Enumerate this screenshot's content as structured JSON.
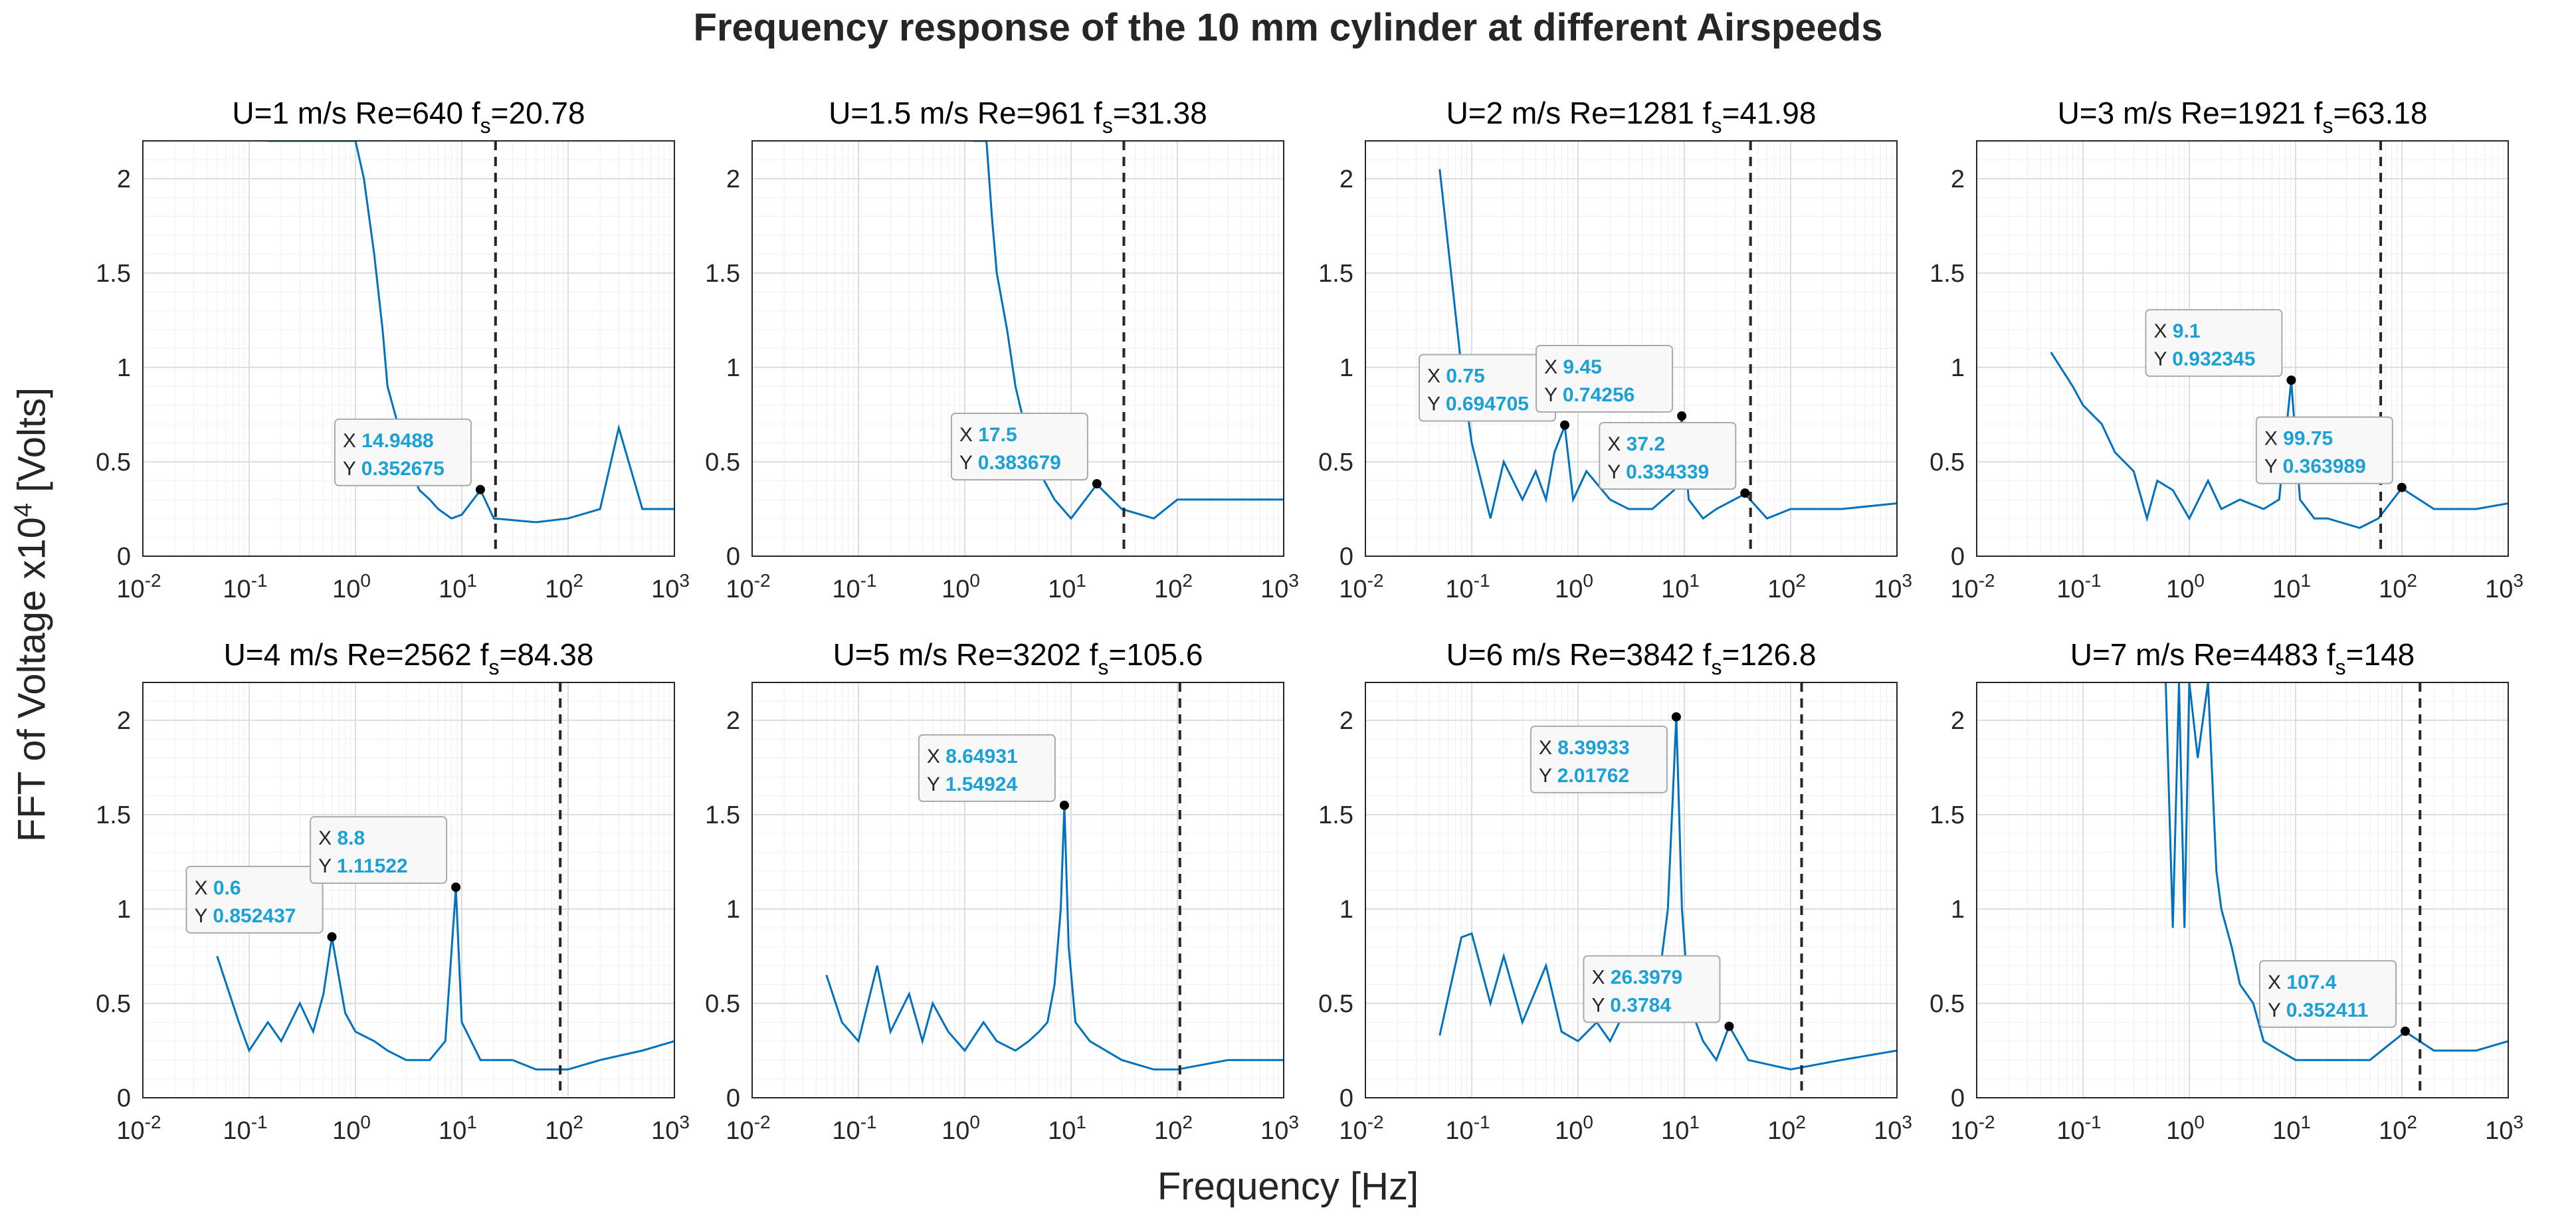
{
  "figure": {
    "title": "Frequency response of the 10 mm cylinder at different Airspeeds",
    "xlabel": "Frequency [Hz]",
    "ylabel": "FFT of Voltage x10",
    "ylabel_exponent": "4",
    "ylabel_units": "[Volts]"
  },
  "colors": {
    "series": "#0072BD",
    "datatip_text": "#1ba1d6",
    "fs_line": "#262626",
    "grid": "#dddddd"
  },
  "chart_data": [
    {
      "type": "line",
      "subtitle": {
        "u": "U=1 m/s",
        "re": "Re=640",
        "fs_label": "f",
        "fs_sub": "s",
        "fs_value": "=20.78"
      },
      "xscale": "log",
      "xlim": [
        0.01,
        1000
      ],
      "ylim": [
        0,
        2.2
      ],
      "xticks": [
        {
          "base": "10",
          "exp": "-2"
        },
        {
          "base": "10",
          "exp": "-1"
        },
        {
          "base": "10",
          "exp": "0"
        },
        {
          "base": "10",
          "exp": "1"
        },
        {
          "base": "10",
          "exp": "2"
        },
        {
          "base": "10",
          "exp": "3"
        }
      ],
      "yticks": [
        "0",
        "0.5",
        "1",
        "1.5",
        "2"
      ],
      "fs_line_x": 20.78,
      "series": {
        "name": "FFT",
        "x": [
          0.15,
          0.2,
          0.4,
          0.6,
          0.8,
          1.0,
          1.2,
          1.5,
          1.8,
          2.0,
          2.5,
          3.0,
          4.0,
          5.0,
          6.0,
          8.0,
          10,
          15,
          20,
          50,
          100,
          200,
          300,
          500,
          1000
        ],
        "y": [
          2.2,
          2.2,
          2.2,
          2.2,
          2.2,
          2.2,
          2.0,
          1.6,
          1.2,
          0.9,
          0.7,
          0.5,
          0.35,
          0.3,
          0.25,
          0.2,
          0.22,
          0.35,
          0.2,
          0.18,
          0.2,
          0.25,
          0.68,
          0.25,
          0.25
        ]
      },
      "annotations": [
        {
          "x_label": "X",
          "x_value": "14.9488",
          "y_label": "Y",
          "y_value": "0.352675",
          "x": 14.9488,
          "y": 0.352675
        }
      ]
    },
    {
      "type": "line",
      "subtitle": {
        "u": "U=1.5 m/s",
        "re": "Re=961",
        "fs_label": "f",
        "fs_sub": "s",
        "fs_value": "=31.38"
      },
      "xscale": "log",
      "xlim": [
        0.01,
        1000
      ],
      "ylim": [
        0,
        2.2
      ],
      "xticks": [
        {
          "base": "10",
          "exp": "-2"
        },
        {
          "base": "10",
          "exp": "-1"
        },
        {
          "base": "10",
          "exp": "0"
        },
        {
          "base": "10",
          "exp": "1"
        },
        {
          "base": "10",
          "exp": "2"
        },
        {
          "base": "10",
          "exp": "3"
        }
      ],
      "yticks": [
        "0",
        "0.5",
        "1",
        "1.5",
        "2"
      ],
      "fs_line_x": 31.38,
      "series": {
        "name": "FFT",
        "x": [
          1.2,
          1.4,
          1.6,
          1.8,
          2.0,
          2.5,
          3.0,
          4.0,
          5.0,
          7.0,
          10,
          17.5,
          30,
          60,
          100,
          300,
          1000
        ],
        "y": [
          2.2,
          2.2,
          2.2,
          1.8,
          1.5,
          1.2,
          0.9,
          0.6,
          0.45,
          0.3,
          0.2,
          0.38,
          0.25,
          0.2,
          0.3,
          0.3,
          0.3
        ]
      },
      "annotations": [
        {
          "x_label": "X",
          "x_value": "17.5",
          "y_label": "Y",
          "y_value": "0.383679",
          "x": 17.5,
          "y": 0.383679
        }
      ]
    },
    {
      "type": "line",
      "subtitle": {
        "u": "U=2 m/s",
        "re": "Re=1281",
        "fs_label": "f",
        "fs_sub": "s",
        "fs_value": "=41.98"
      },
      "xscale": "log",
      "xlim": [
        0.01,
        1000
      ],
      "ylim": [
        0,
        2.2
      ],
      "xticks": [
        {
          "base": "10",
          "exp": "-2"
        },
        {
          "base": "10",
          "exp": "-1"
        },
        {
          "base": "10",
          "exp": "0"
        },
        {
          "base": "10",
          "exp": "1"
        },
        {
          "base": "10",
          "exp": "2"
        },
        {
          "base": "10",
          "exp": "3"
        }
      ],
      "yticks": [
        "0",
        "0.5",
        "1",
        "1.5",
        "2"
      ],
      "fs_line_x": 41.98,
      "series": {
        "name": "FFT",
        "x": [
          0.05,
          0.08,
          0.1,
          0.15,
          0.2,
          0.3,
          0.4,
          0.5,
          0.6,
          0.75,
          0.9,
          1.2,
          2,
          3,
          5,
          8,
          9.45,
          11,
          15,
          20,
          37.2,
          60,
          100,
          300,
          1000
        ],
        "y": [
          2.05,
          1.0,
          0.6,
          0.2,
          0.5,
          0.3,
          0.45,
          0.3,
          0.55,
          0.69,
          0.3,
          0.45,
          0.3,
          0.25,
          0.25,
          0.35,
          0.74,
          0.3,
          0.2,
          0.25,
          0.33,
          0.2,
          0.25,
          0.25,
          0.28
        ]
      },
      "annotations": [
        {
          "x_label": "X",
          "x_value": "0.75",
          "y_label": "Y",
          "y_value": "0.694705",
          "x": 0.75,
          "y": 0.694705
        },
        {
          "x_label": "X",
          "x_value": "9.45",
          "y_label": "Y",
          "y_value": "0.74256",
          "x": 9.45,
          "y": 0.74256
        },
        {
          "x_label": "X",
          "x_value": "37.2",
          "y_label": "Y",
          "y_value": "0.334339",
          "x": 37.2,
          "y": 0.334339
        }
      ]
    },
    {
      "type": "line",
      "subtitle": {
        "u": "U=3 m/s",
        "re": "Re=1921",
        "fs_label": "f",
        "fs_sub": "s",
        "fs_value": "=63.18"
      },
      "xscale": "log",
      "xlim": [
        0.01,
        1000
      ],
      "ylim": [
        0,
        2.2
      ],
      "xticks": [
        {
          "base": "10",
          "exp": "-2"
        },
        {
          "base": "10",
          "exp": "-1"
        },
        {
          "base": "10",
          "exp": "0"
        },
        {
          "base": "10",
          "exp": "1"
        },
        {
          "base": "10",
          "exp": "2"
        },
        {
          "base": "10",
          "exp": "3"
        }
      ],
      "yticks": [
        "0",
        "0.5",
        "1",
        "1.5",
        "2"
      ],
      "fs_line_x": 63.18,
      "series": {
        "name": "FFT",
        "x": [
          0.05,
          0.08,
          0.1,
          0.15,
          0.2,
          0.3,
          0.4,
          0.5,
          0.7,
          1,
          1.5,
          2,
          3,
          5,
          7,
          9.1,
          11,
          15,
          20,
          40,
          60,
          99.75,
          200,
          500,
          1000
        ],
        "y": [
          1.08,
          0.9,
          0.8,
          0.7,
          0.55,
          0.45,
          0.2,
          0.4,
          0.35,
          0.2,
          0.4,
          0.25,
          0.3,
          0.25,
          0.3,
          0.93,
          0.3,
          0.2,
          0.2,
          0.15,
          0.2,
          0.36,
          0.25,
          0.25,
          0.28
        ]
      },
      "annotations": [
        {
          "x_label": "X",
          "x_value": "9.1",
          "y_label": "Y",
          "y_value": "0.932345",
          "x": 9.1,
          "y": 0.932345
        },
        {
          "x_label": "X",
          "x_value": "99.75",
          "y_label": "Y",
          "y_value": "0.363989",
          "x": 99.75,
          "y": 0.363989
        }
      ]
    },
    {
      "type": "line",
      "subtitle": {
        "u": "U=4 m/s",
        "re": "Re=2562",
        "fs_label": "f",
        "fs_sub": "s",
        "fs_value": "=84.38"
      },
      "xscale": "log",
      "xlim": [
        0.01,
        1000
      ],
      "ylim": [
        0,
        2.2
      ],
      "xticks": [
        {
          "base": "10",
          "exp": "-2"
        },
        {
          "base": "10",
          "exp": "-1"
        },
        {
          "base": "10",
          "exp": "0"
        },
        {
          "base": "10",
          "exp": "1"
        },
        {
          "base": "10",
          "exp": "2"
        },
        {
          "base": "10",
          "exp": "3"
        }
      ],
      "yticks": [
        "0",
        "0.5",
        "1",
        "1.5",
        "2"
      ],
      "fs_line_x": 84.38,
      "series": {
        "name": "FFT",
        "x": [
          0.05,
          0.08,
          0.1,
          0.15,
          0.2,
          0.3,
          0.4,
          0.5,
          0.6,
          0.8,
          1,
          1.5,
          2,
          3,
          5,
          7,
          8.8,
          10,
          15,
          30,
          50,
          100,
          200,
          500,
          1000
        ],
        "y": [
          0.75,
          0.4,
          0.25,
          0.4,
          0.3,
          0.5,
          0.35,
          0.55,
          0.85,
          0.45,
          0.35,
          0.3,
          0.25,
          0.2,
          0.2,
          0.3,
          1.11,
          0.4,
          0.2,
          0.2,
          0.15,
          0.15,
          0.2,
          0.25,
          0.3
        ]
      },
      "annotations": [
        {
          "x_label": "X",
          "x_value": "0.6",
          "y_label": "Y",
          "y_value": "0.852437",
          "x": 0.6,
          "y": 0.852437
        },
        {
          "x_label": "X",
          "x_value": "8.8",
          "y_label": "Y",
          "y_value": "1.11522",
          "x": 8.8,
          "y": 1.11522
        }
      ]
    },
    {
      "type": "line",
      "subtitle": {
        "u": "U=5 m/s",
        "re": "Re=3202",
        "fs_label": "f",
        "fs_sub": "s",
        "fs_value": "=105.6"
      },
      "xscale": "log",
      "xlim": [
        0.01,
        1000
      ],
      "ylim": [
        0,
        2.2
      ],
      "xticks": [
        {
          "base": "10",
          "exp": "-2"
        },
        {
          "base": "10",
          "exp": "-1"
        },
        {
          "base": "10",
          "exp": "0"
        },
        {
          "base": "10",
          "exp": "1"
        },
        {
          "base": "10",
          "exp": "2"
        },
        {
          "base": "10",
          "exp": "3"
        }
      ],
      "yticks": [
        "0",
        "0.5",
        "1",
        "1.5",
        "2"
      ],
      "fs_line_x": 105.6,
      "series": {
        "name": "FFT",
        "x": [
          0.05,
          0.07,
          0.1,
          0.15,
          0.2,
          0.3,
          0.4,
          0.5,
          0.7,
          1,
          1.5,
          2,
          3,
          4,
          5,
          6,
          7,
          8,
          8.65,
          9.5,
          11,
          15,
          30,
          60,
          100,
          300,
          1000
        ],
        "y": [
          0.65,
          0.4,
          0.3,
          0.7,
          0.35,
          0.55,
          0.3,
          0.5,
          0.35,
          0.25,
          0.4,
          0.3,
          0.25,
          0.3,
          0.35,
          0.4,
          0.6,
          1.0,
          1.55,
          0.8,
          0.4,
          0.3,
          0.2,
          0.15,
          0.15,
          0.2,
          0.2
        ]
      },
      "annotations": [
        {
          "x_label": "X",
          "x_value": "8.64931",
          "y_label": "Y",
          "y_value": "1.54924",
          "x": 8.64931,
          "y": 1.54924
        }
      ]
    },
    {
      "type": "line",
      "subtitle": {
        "u": "U=6 m/s",
        "re": "Re=3842",
        "fs_label": "f",
        "fs_sub": "s",
        "fs_value": "=126.8"
      },
      "xscale": "log",
      "xlim": [
        0.01,
        1000
      ],
      "ylim": [
        0,
        2.2
      ],
      "xticks": [
        {
          "base": "10",
          "exp": "-2"
        },
        {
          "base": "10",
          "exp": "-1"
        },
        {
          "base": "10",
          "exp": "0"
        },
        {
          "base": "10",
          "exp": "1"
        },
        {
          "base": "10",
          "exp": "2"
        },
        {
          "base": "10",
          "exp": "3"
        }
      ],
      "yticks": [
        "0",
        "0.5",
        "1",
        "1.5",
        "2"
      ],
      "fs_line_x": 126.8,
      "series": {
        "name": "FFT",
        "x": [
          0.05,
          0.08,
          0.1,
          0.15,
          0.2,
          0.3,
          0.5,
          0.7,
          1,
          1.5,
          2,
          3,
          4,
          5,
          6,
          7,
          8.4,
          9.5,
          11,
          15,
          20,
          26.4,
          40,
          100,
          300,
          1000
        ],
        "y": [
          0.33,
          0.85,
          0.87,
          0.5,
          0.75,
          0.4,
          0.7,
          0.35,
          0.3,
          0.4,
          0.3,
          0.5,
          0.45,
          0.55,
          0.7,
          1.0,
          2.02,
          1.0,
          0.5,
          0.3,
          0.2,
          0.38,
          0.2,
          0.15,
          0.2,
          0.25
        ]
      },
      "annotations": [
        {
          "x_label": "X",
          "x_value": "8.39933",
          "y_label": "Y",
          "y_value": "2.01762",
          "x": 8.39933,
          "y": 2.01762
        },
        {
          "x_label": "X",
          "x_value": "26.3979",
          "y_label": "Y",
          "y_value": "0.3784",
          "x": 26.3979,
          "y": 0.3784
        }
      ]
    },
    {
      "type": "line",
      "subtitle": {
        "u": "U=7 m/s",
        "re": "Re=4483",
        "fs_label": "f",
        "fs_sub": "s",
        "fs_value": "=148"
      },
      "xscale": "log",
      "xlim": [
        0.01,
        1000
      ],
      "ylim": [
        0,
        2.2
      ],
      "xticks": [
        {
          "base": "10",
          "exp": "-2"
        },
        {
          "base": "10",
          "exp": "-1"
        },
        {
          "base": "10",
          "exp": "0"
        },
        {
          "base": "10",
          "exp": "1"
        },
        {
          "base": "10",
          "exp": "2"
        },
        {
          "base": "10",
          "exp": "3"
        }
      ],
      "yticks": [
        "0",
        "0.5",
        "1",
        "1.5",
        "2"
      ],
      "fs_line_x": 148,
      "series": {
        "name": "FFT",
        "x": [
          0.6,
          0.7,
          0.8,
          0.9,
          1.0,
          1.2,
          1.5,
          1.8,
          2,
          2.5,
          3,
          4,
          5,
          7,
          10,
          20,
          50,
          107.4,
          200,
          500,
          1000
        ],
        "y": [
          2.2,
          0.9,
          2.2,
          0.9,
          2.2,
          1.8,
          2.2,
          1.2,
          1.0,
          0.8,
          0.6,
          0.5,
          0.3,
          0.25,
          0.2,
          0.2,
          0.2,
          0.35,
          0.25,
          0.25,
          0.3
        ]
      },
      "annotations": [
        {
          "x_label": "X",
          "x_value": "107.4",
          "y_label": "Y",
          "y_value": "0.352411",
          "x": 107.4,
          "y": 0.352411
        }
      ]
    }
  ]
}
